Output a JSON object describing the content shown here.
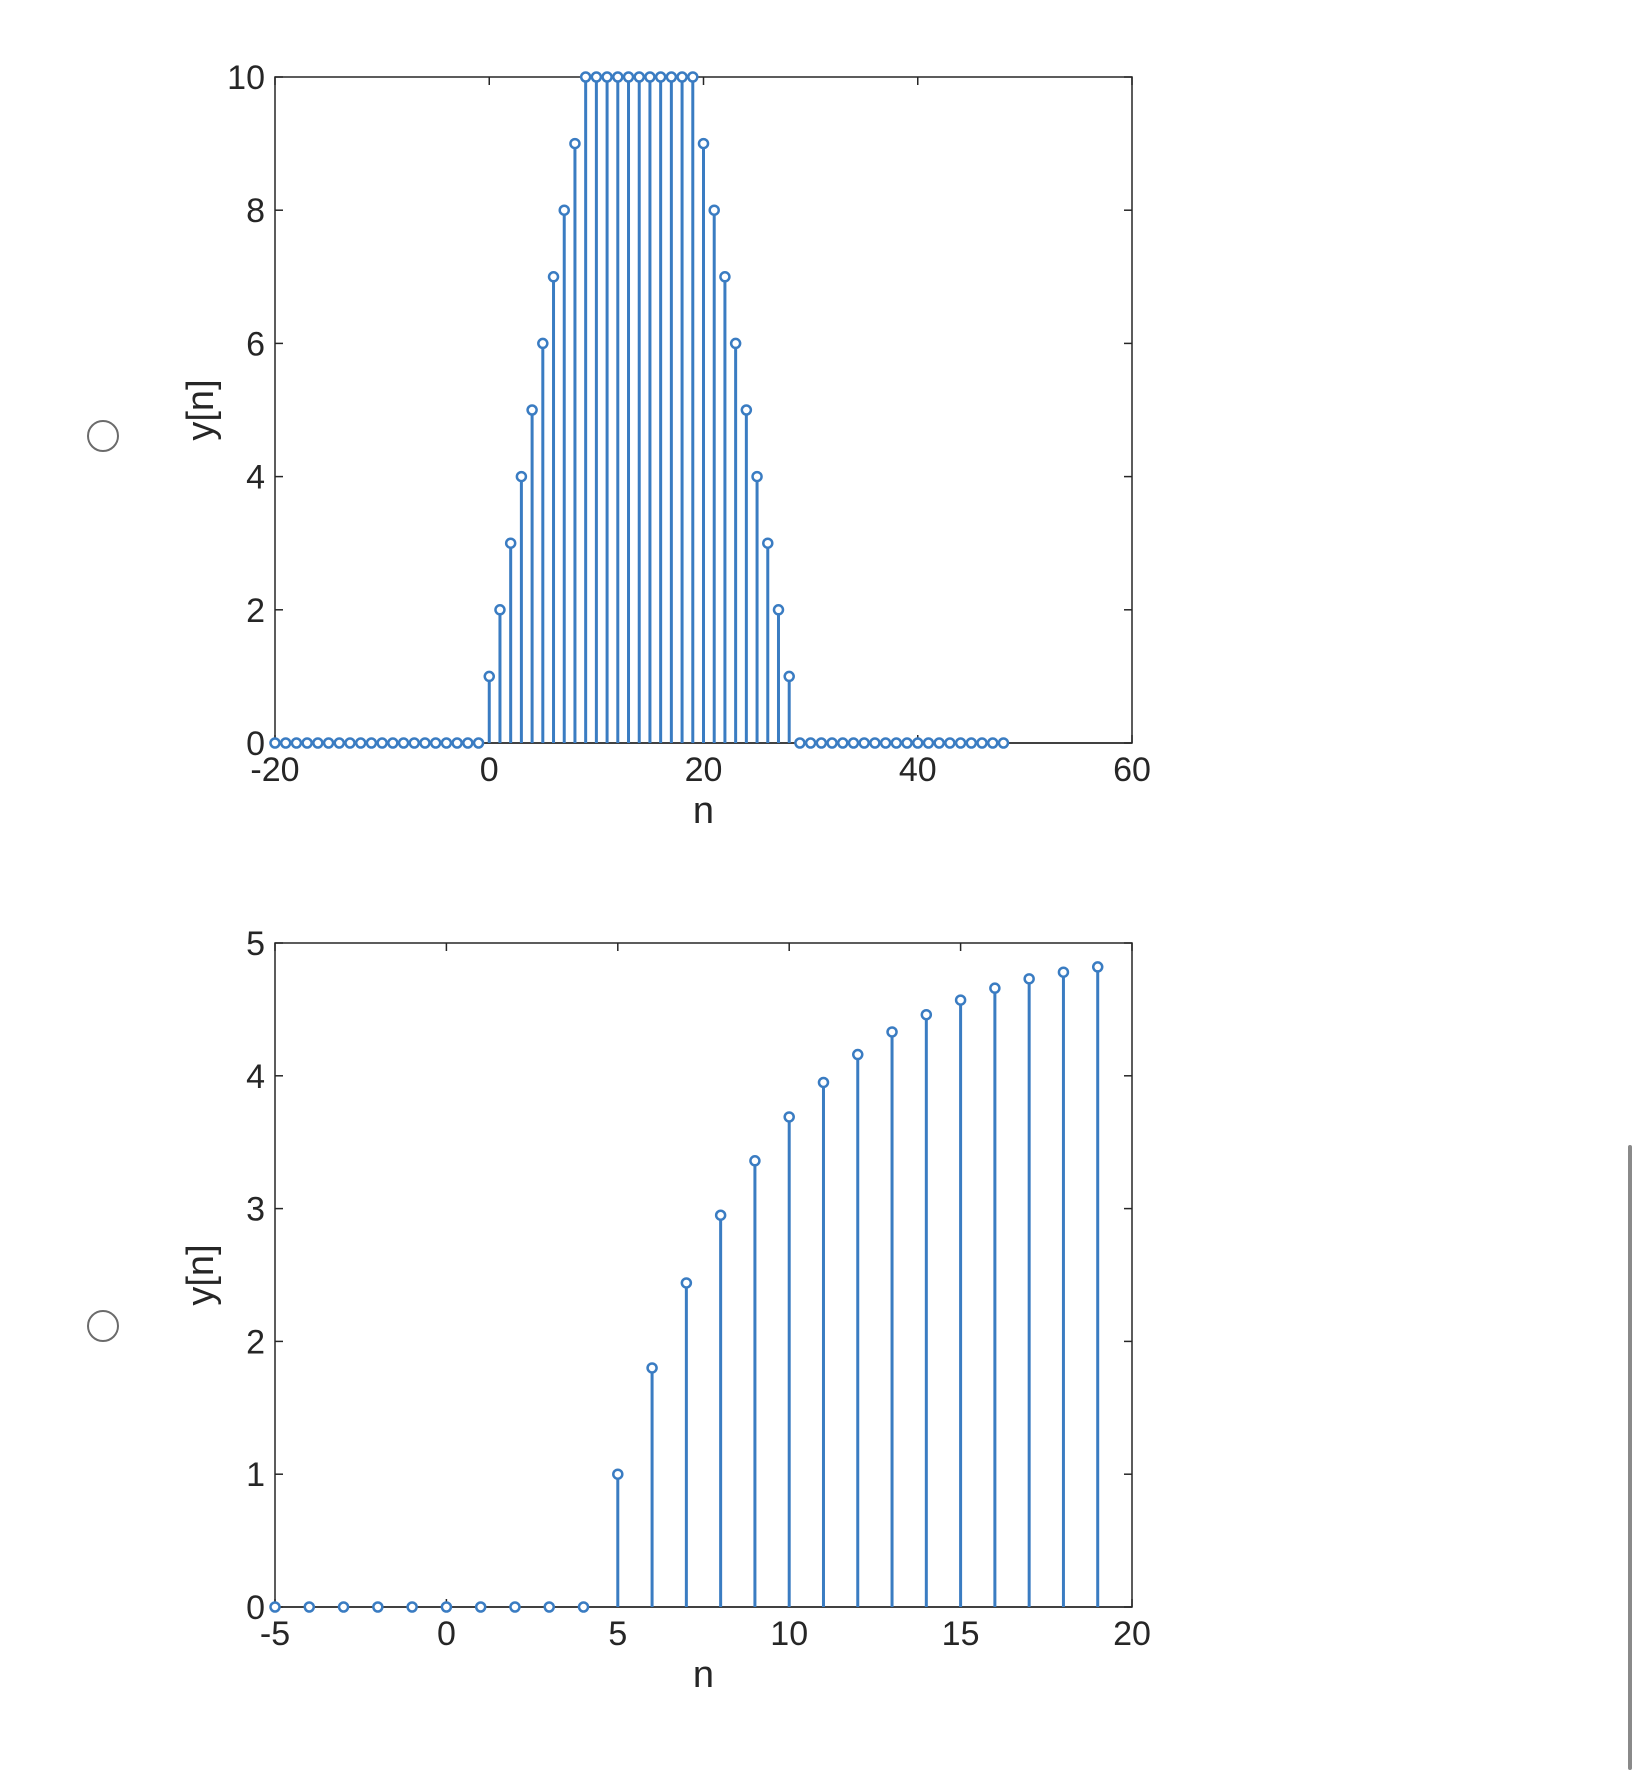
{
  "chart_data": [
    {
      "type": "stem",
      "xlabel": "n",
      "ylabel": "y[n]",
      "xlim": [
        -20,
        60
      ],
      "ylim": [
        0,
        10
      ],
      "xticks": [
        -20,
        0,
        20,
        40,
        60
      ],
      "yticks": [
        0,
        2,
        4,
        6,
        8,
        10
      ],
      "x": [
        -20,
        -19,
        -18,
        -17,
        -16,
        -15,
        -14,
        -13,
        -12,
        -11,
        -10,
        -9,
        -8,
        -7,
        -6,
        -5,
        -4,
        -3,
        -2,
        -1,
        0,
        1,
        2,
        3,
        4,
        5,
        6,
        7,
        8,
        9,
        10,
        11,
        12,
        13,
        14,
        15,
        16,
        17,
        18,
        19,
        20,
        21,
        22,
        23,
        24,
        25,
        26,
        27,
        28,
        29,
        30,
        31,
        32,
        33,
        34,
        35,
        36,
        37,
        38,
        39,
        40,
        41,
        42,
        43,
        44,
        45,
        46,
        47,
        48
      ],
      "y": [
        0,
        0,
        0,
        0,
        0,
        0,
        0,
        0,
        0,
        0,
        0,
        0,
        0,
        0,
        0,
        0,
        0,
        0,
        0,
        0,
        1,
        2,
        3,
        4,
        5,
        6,
        7,
        8,
        9,
        10,
        10,
        10,
        10,
        10,
        10,
        10,
        10,
        10,
        10,
        10,
        9,
        8,
        7,
        6,
        5,
        4,
        3,
        2,
        1,
        0,
        0,
        0,
        0,
        0,
        0,
        0,
        0,
        0,
        0,
        0,
        0,
        0,
        0,
        0,
        0,
        0,
        0,
        0,
        0
      ],
      "color": "#3a7cc2",
      "grid": false
    },
    {
      "type": "stem",
      "xlabel": "n",
      "ylabel": "y[n]",
      "xlim": [
        -5,
        20
      ],
      "ylim": [
        0,
        5
      ],
      "xticks": [
        -5,
        0,
        5,
        10,
        15,
        20
      ],
      "yticks": [
        0,
        1,
        2,
        3,
        4,
        5
      ],
      "x": [
        -5,
        -4,
        -3,
        -2,
        -1,
        0,
        1,
        2,
        3,
        4,
        5,
        6,
        7,
        8,
        9,
        10,
        11,
        12,
        13,
        14,
        15,
        16,
        17,
        18,
        19
      ],
      "y": [
        0,
        0,
        0,
        0,
        0,
        0,
        0,
        0,
        0,
        0,
        1.0,
        1.8,
        2.44,
        2.95,
        3.36,
        3.69,
        3.95,
        4.16,
        4.33,
        4.46,
        4.57,
        4.66,
        4.73,
        4.78,
        4.82
      ],
      "color": "#3a7cc2",
      "grid": false
    }
  ]
}
